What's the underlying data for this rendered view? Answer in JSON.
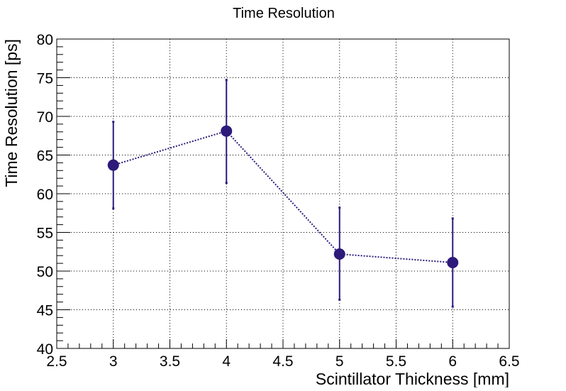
{
  "chart_data": {
    "type": "scatter",
    "title": "Time Resolution",
    "xlabel": "Scintillator Thickness [mm]",
    "ylabel": "Time Resolution [ps]",
    "xlim": [
      2.5,
      6.5
    ],
    "ylim": [
      40,
      80
    ],
    "x_ticks": [
      "2.5",
      "3",
      "3.5",
      "4",
      "4.5",
      "5",
      "5.5",
      "6",
      "6.5"
    ],
    "y_ticks": [
      "40",
      "45",
      "50",
      "55",
      "60",
      "65",
      "70",
      "75",
      "80"
    ],
    "grid": true,
    "series": [
      {
        "x": [
          3,
          4,
          5,
          6
        ],
        "y": [
          63.7,
          68.1,
          52.2,
          51.1
        ],
        "err_low": [
          58.1,
          61.4,
          46.3,
          45.4
        ],
        "err_high": [
          69.3,
          74.7,
          58.2,
          56.8
        ],
        "color": "#2d1a7a",
        "line_style": "dotted",
        "marker": "circle"
      }
    ]
  }
}
